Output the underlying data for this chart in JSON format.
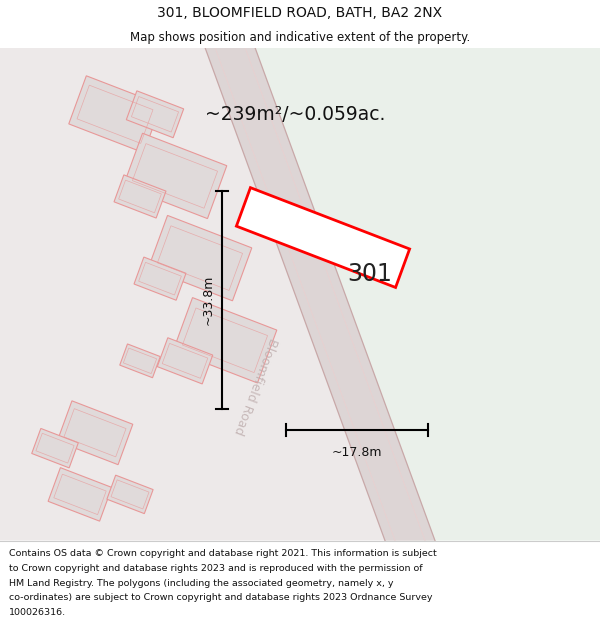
{
  "title": "301, BLOOMFIELD ROAD, BATH, BA2 2NX",
  "subtitle": "Map shows position and indicative extent of the property.",
  "area_label": "~239m²/~0.059ac.",
  "dim_vertical": "~33.8m",
  "dim_horizontal": "~17.8m",
  "property_label": "301",
  "road_label": "Bloomfield Road",
  "footer_lines": [
    "Contains OS data © Crown copyright and database right 2021. This information is subject",
    "to Crown copyright and database rights 2023 and is reproduced with the permission of",
    "HM Land Registry. The polygons (including the associated geometry, namely x, y",
    "co-ordinates) are subject to Crown copyright and database rights 2023 Ordnance Survey",
    "100026316."
  ],
  "bg_left_color": "#ede9e9",
  "bg_right_color": "#eaf0ea",
  "road_fill": "#ddd5d5",
  "road_edge_color": "#c8a8a8",
  "road_inner_color": "#e8d0d0",
  "building_fill": "#e0dada",
  "building_outline": "#e89898",
  "property_fill": "#ffffff",
  "property_outline": "#ff0000",
  "header_bg": "#ffffff",
  "footer_bg": "#ffffff"
}
